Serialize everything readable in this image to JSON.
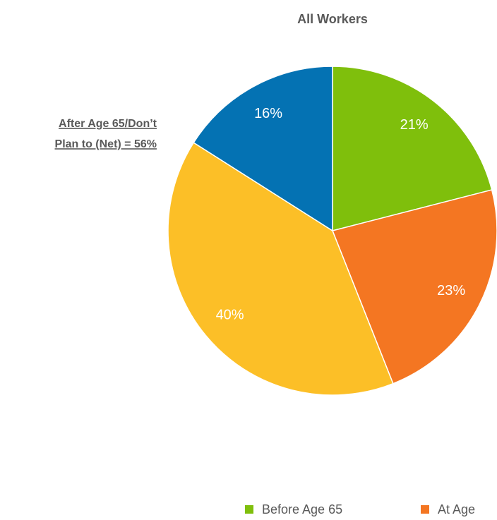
{
  "chart_data": {
    "type": "pie",
    "title": "All Workers",
    "annotation": [
      "After Age 65/Don’t",
      "Plan to (Net) = 56%"
    ],
    "categories": [
      "Before Age 65",
      "At Age",
      null,
      null
    ],
    "values": [
      21,
      23,
      40,
      16
    ],
    "value_labels": [
      "21%",
      "23%",
      "40%",
      "16%"
    ],
    "colors": [
      "#7fbf0c",
      "#f47622",
      "#fcbf27",
      "#0472b3"
    ],
    "legend": "bottom"
  }
}
